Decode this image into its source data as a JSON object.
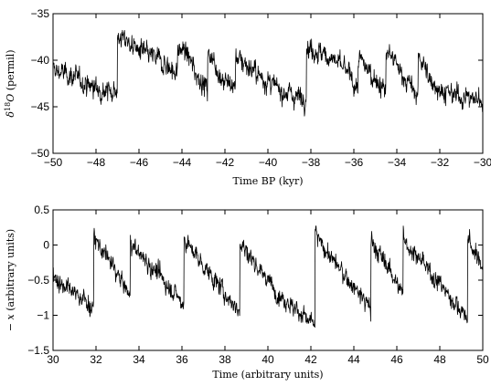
{
  "chart_data": [
    {
      "type": "line",
      "title": "",
      "xlabel": "Time BP (kyr)",
      "ylabel_parts": {
        "prefix": "δ",
        "sup": "18",
        "var": "O",
        "suffix": " (permil)"
      },
      "xlim": [
        -50,
        -30
      ],
      "ylim": [
        -50,
        -35
      ],
      "xticks": [
        -50,
        -48,
        -46,
        -44,
        -42,
        -40,
        -38,
        -36,
        -34,
        -32,
        -30
      ],
      "xtick_labels": [
        "−50",
        "−48",
        "−46",
        "−44",
        "−42",
        "−40",
        "−38",
        "−36",
        "−34",
        "−32",
        "−30"
      ],
      "yticks": [
        -50,
        -45,
        -40,
        -35
      ],
      "ytick_labels": [
        "−50",
        "−45",
        "−40",
        "−35"
      ],
      "grid": false,
      "legend": "none",
      "noise": 1.2,
      "segments": [
        {
          "x": [
            -50.0,
            -49.0,
            -48.5,
            -48.0,
            -47.4,
            -47.0
          ],
          "y": [
            -41.0,
            -41.8,
            -42.5,
            -43.0,
            -43.3,
            -43.0
          ]
        },
        {
          "x": [
            -47.0,
            -46.8,
            -46.0,
            -45.0,
            -44.2
          ],
          "y": [
            -38.0,
            -37.5,
            -39.0,
            -40.0,
            -41.5
          ]
        },
        {
          "x": [
            -44.2,
            -43.9,
            -43.3,
            -42.8
          ],
          "y": [
            -39.0,
            -38.8,
            -41.5,
            -43.2
          ]
        },
        {
          "x": [
            -42.8,
            -42.7,
            -42.2,
            -41.5
          ],
          "y": [
            -39.5,
            -39.2,
            -41.8,
            -43.0
          ]
        },
        {
          "x": [
            -41.5,
            -41.3,
            -40.5,
            -39.6,
            -38.8,
            -38.2
          ],
          "y": [
            -39.5,
            -39.8,
            -41.5,
            -43.0,
            -43.8,
            -44.0
          ]
        },
        {
          "x": [
            -38.2,
            -38.0,
            -37.0,
            -36.2,
            -35.8
          ],
          "y": [
            -38.5,
            -38.8,
            -39.8,
            -41.5,
            -43.5
          ]
        },
        {
          "x": [
            -35.8,
            -35.6,
            -35.0,
            -34.5
          ],
          "y": [
            -40.0,
            -40.3,
            -42.0,
            -43.5
          ]
        },
        {
          "x": [
            -34.5,
            -34.3,
            -33.6,
            -33.0
          ],
          "y": [
            -39.0,
            -39.5,
            -42.0,
            -44.0
          ]
        },
        {
          "x": [
            -33.0,
            -32.9,
            -32.5,
            -31.8,
            -30.8,
            -30.0
          ],
          "y": [
            -39.5,
            -39.8,
            -42.0,
            -43.5,
            -44.0,
            -44.3
          ]
        }
      ]
    },
    {
      "type": "line",
      "title": "",
      "xlabel": "Time (arbitrary units)",
      "ylabel_parts": {
        "prefix": "− ",
        "sup": "",
        "var": "x",
        "suffix": " (arbitrary units)"
      },
      "xlim": [
        30,
        50
      ],
      "ylim": [
        -1.5,
        0.5
      ],
      "xticks": [
        30,
        32,
        34,
        36,
        38,
        40,
        42,
        44,
        46,
        48,
        50
      ],
      "xtick_labels": [
        "30",
        "32",
        "34",
        "36",
        "38",
        "40",
        "42",
        "44",
        "46",
        "48",
        "50"
      ],
      "yticks": [
        -1.5,
        -1,
        -0.5,
        0,
        0.5
      ],
      "ytick_labels": [
        "−1.5",
        "−1",
        "−0.5",
        "0",
        "0.5"
      ],
      "grid": false,
      "legend": "none",
      "noise": 0.14,
      "segments": [
        {
          "x": [
            30.0,
            30.8,
            31.5,
            31.9
          ],
          "y": [
            -0.45,
            -0.65,
            -0.78,
            -0.95
          ]
        },
        {
          "x": [
            31.9,
            32.0,
            32.8,
            33.6
          ],
          "y": [
            0.15,
            0.05,
            -0.3,
            -0.75
          ]
        },
        {
          "x": [
            33.6,
            33.8,
            35.0,
            36.1
          ],
          "y": [
            0.05,
            -0.05,
            -0.45,
            -0.85
          ]
        },
        {
          "x": [
            36.1,
            36.3,
            37.5,
            38.7
          ],
          "y": [
            0.1,
            0.0,
            -0.5,
            -0.95
          ]
        },
        {
          "x": [
            38.7,
            38.9,
            40.5,
            42.2
          ],
          "y": [
            0.05,
            -0.05,
            -0.7,
            -1.15
          ]
        },
        {
          "x": [
            42.2,
            42.4,
            43.6,
            44.8
          ],
          "y": [
            0.2,
            0.05,
            -0.45,
            -0.9
          ]
        },
        {
          "x": [
            44.8,
            45.0,
            45.8,
            46.3
          ],
          "y": [
            0.05,
            -0.05,
            -0.4,
            -0.75
          ]
        },
        {
          "x": [
            46.3,
            46.5,
            48.0,
            49.3
          ],
          "y": [
            0.15,
            0.0,
            -0.55,
            -1.05
          ]
        },
        {
          "x": [
            49.3,
            49.5,
            50.0
          ],
          "y": [
            0.1,
            -0.05,
            -0.3
          ]
        }
      ]
    }
  ]
}
